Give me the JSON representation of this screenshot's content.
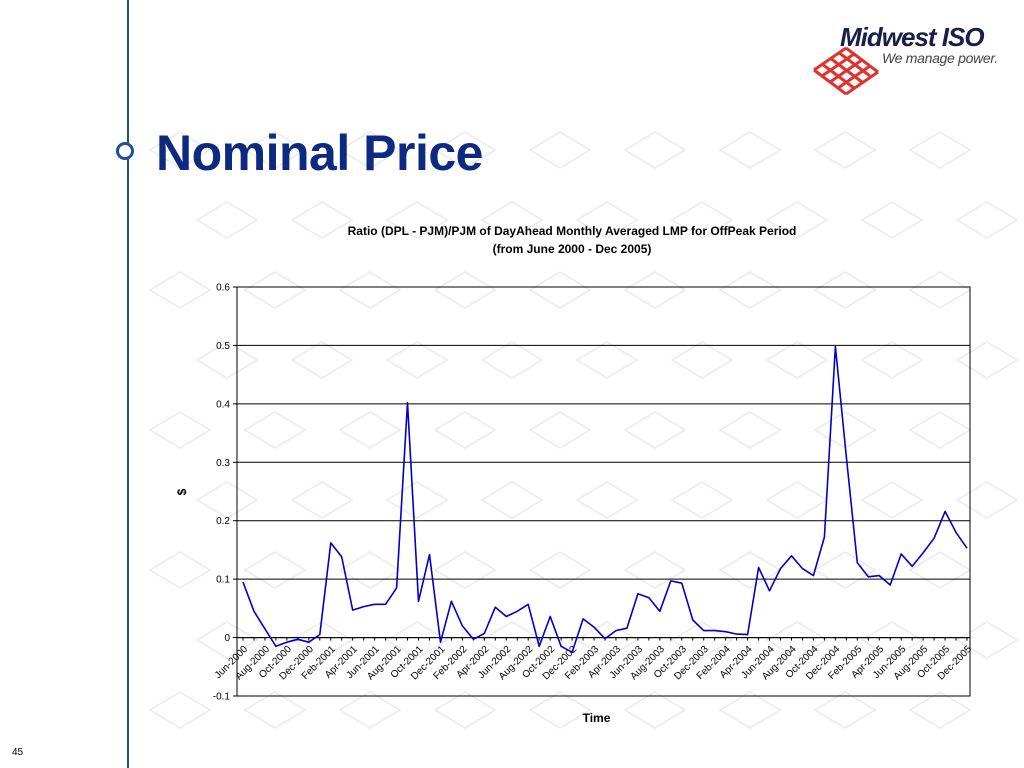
{
  "slide": {
    "title": "Nominal Price",
    "page_number": "45"
  },
  "logo": {
    "wordmark": "Midwest ISO",
    "tagline": "We manage power.",
    "mark_color": "#e0332f"
  },
  "colors": {
    "accent": "#1f4e9c",
    "title": "#0d2a80",
    "series": "#0000cc"
  },
  "chart_data": {
    "type": "line",
    "title": "Ratio (DPL - PJM)/PJM of DayAhead Monthly Averaged LMP for OffPeak Period",
    "subtitle": "(from June 2000 - Dec 2005)",
    "xlabel": "Time",
    "ylabel": "$",
    "ylim": [
      -0.1,
      0.6
    ],
    "yticks": [
      "-0.1",
      "0",
      "0.1",
      "0.2",
      "0.3",
      "0.4",
      "0.5",
      "0.6"
    ],
    "grid": "horizontal",
    "legend": "none",
    "x_tick_labels": [
      "Jun-2000",
      "Aug-2000",
      "Oct-2000",
      "Dec-2000",
      "Feb-2001",
      "Apr-2001",
      "Jun-2001",
      "Aug-2001",
      "Oct-2001",
      "Dec-2001",
      "Feb-2002",
      "Apr-2002",
      "Jun-2002",
      "Aug-2002",
      "Oct-2002",
      "Dec-2002",
      "Feb-2003",
      "Apr-2003",
      "Jun-2003",
      "Aug-2003",
      "Oct-2003",
      "Dec-2003",
      "Feb-2004",
      "Apr-2004",
      "Jun-2004",
      "Aug-2004",
      "Oct-2004",
      "Dec-2004",
      "Feb-2005",
      "Apr-2005",
      "Jun-2005",
      "Aug-2005",
      "Oct-2005",
      "Dec-2005"
    ],
    "series": [
      {
        "values": [
          0.095,
          0.045,
          0.015,
          -0.015,
          -0.008,
          -0.003,
          -0.008,
          0.005,
          0.162,
          0.138,
          0.047,
          0.053,
          0.057,
          0.057,
          0.085,
          0.402,
          0.062,
          0.142,
          -0.008,
          0.062,
          0.02,
          -0.003,
          0.007,
          0.052,
          0.036,
          0.045,
          0.057,
          -0.015,
          0.036,
          -0.015,
          -0.025,
          0.032,
          0.018,
          -0.002,
          0.012,
          0.016,
          0.075,
          0.068,
          0.045,
          0.097,
          0.093,
          0.03,
          0.012,
          0.012,
          0.01,
          0.006,
          0.005,
          0.12,
          0.08,
          0.118,
          0.14,
          0.118,
          0.106,
          0.172,
          0.498,
          0.31,
          0.128,
          0.104,
          0.106,
          0.09,
          0.143,
          0.122,
          0.145,
          0.17,
          0.216,
          0.18,
          0.153
        ]
      }
    ]
  }
}
